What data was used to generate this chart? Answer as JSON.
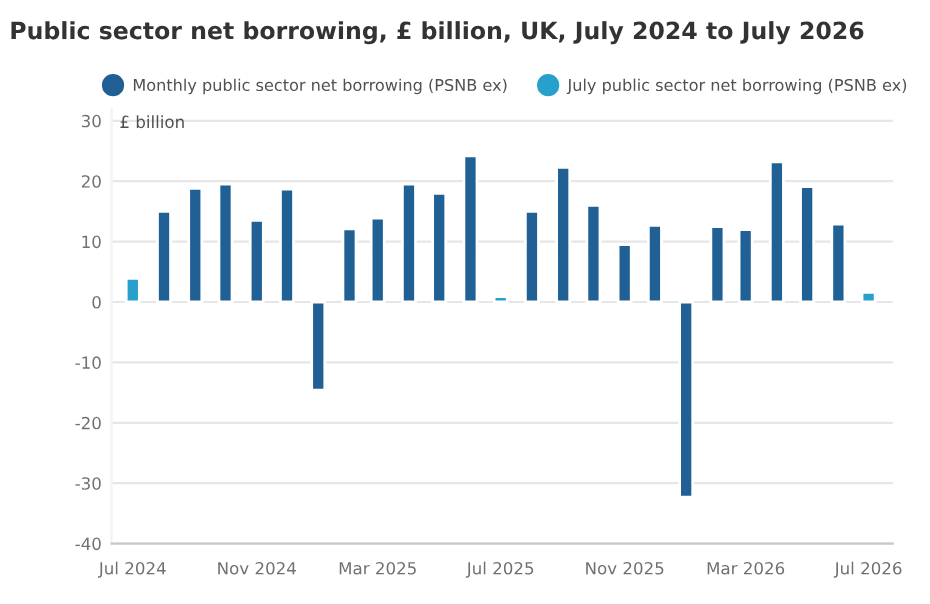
{
  "chart_data": {
    "type": "bar",
    "title": "Public sector net borrowing, £ billion, UK, July 2024 to July 2026",
    "ylabel": "£ billion",
    "x": [
      "2024-07",
      "2024-08",
      "2024-09",
      "2024-10",
      "2024-11",
      "2024-12",
      "2025-01",
      "2025-02",
      "2025-03",
      "2025-04",
      "2025-05",
      "2025-06",
      "2025-07",
      "2025-08",
      "2025-09",
      "2025-10",
      "2025-11",
      "2025-12",
      "2026-01",
      "2026-02",
      "2026-03",
      "2026-04",
      "2026-05",
      "2026-06",
      "2026-07"
    ],
    "series": [
      {
        "name": "Monthly public sector net borrowing (PSNB ex)",
        "color": "#206095",
        "values": [
          null,
          15.0,
          18.8,
          19.5,
          13.5,
          18.7,
          -14.6,
          12.1,
          13.9,
          19.5,
          18.0,
          24.2,
          null,
          15.0,
          22.3,
          16.0,
          9.5,
          12.7,
          -32.3,
          12.5,
          12.0,
          23.2,
          19.1,
          12.9,
          null
        ]
      },
      {
        "name": "July public sector net borrowing (PSNB ex)",
        "color": "#27a0cc",
        "values": [
          3.9,
          null,
          null,
          null,
          null,
          null,
          null,
          null,
          null,
          null,
          null,
          null,
          0.9,
          null,
          null,
          null,
          null,
          null,
          null,
          null,
          null,
          null,
          null,
          null,
          1.6
        ]
      }
    ],
    "xlim": [
      "2024-06-10",
      "2026-07-25"
    ],
    "xticks": [
      {
        "value": "2024-07",
        "label": "Jul 2024"
      },
      {
        "value": "2024-11",
        "label": "Nov 2024"
      },
      {
        "value": "2025-03",
        "label": "Mar 2025"
      },
      {
        "value": "2025-07",
        "label": "Jul 2025"
      },
      {
        "value": "2025-11",
        "label": "Nov 2025"
      },
      {
        "value": "2026-03",
        "label": "Mar 2026"
      },
      {
        "value": "2026-07",
        "label": "Jul 2026"
      }
    ],
    "ylim": [
      -40,
      32
    ],
    "yticks": [
      -40,
      -30,
      -20,
      -10,
      0,
      10,
      20,
      30
    ],
    "grid": "y",
    "legend": "top"
  }
}
